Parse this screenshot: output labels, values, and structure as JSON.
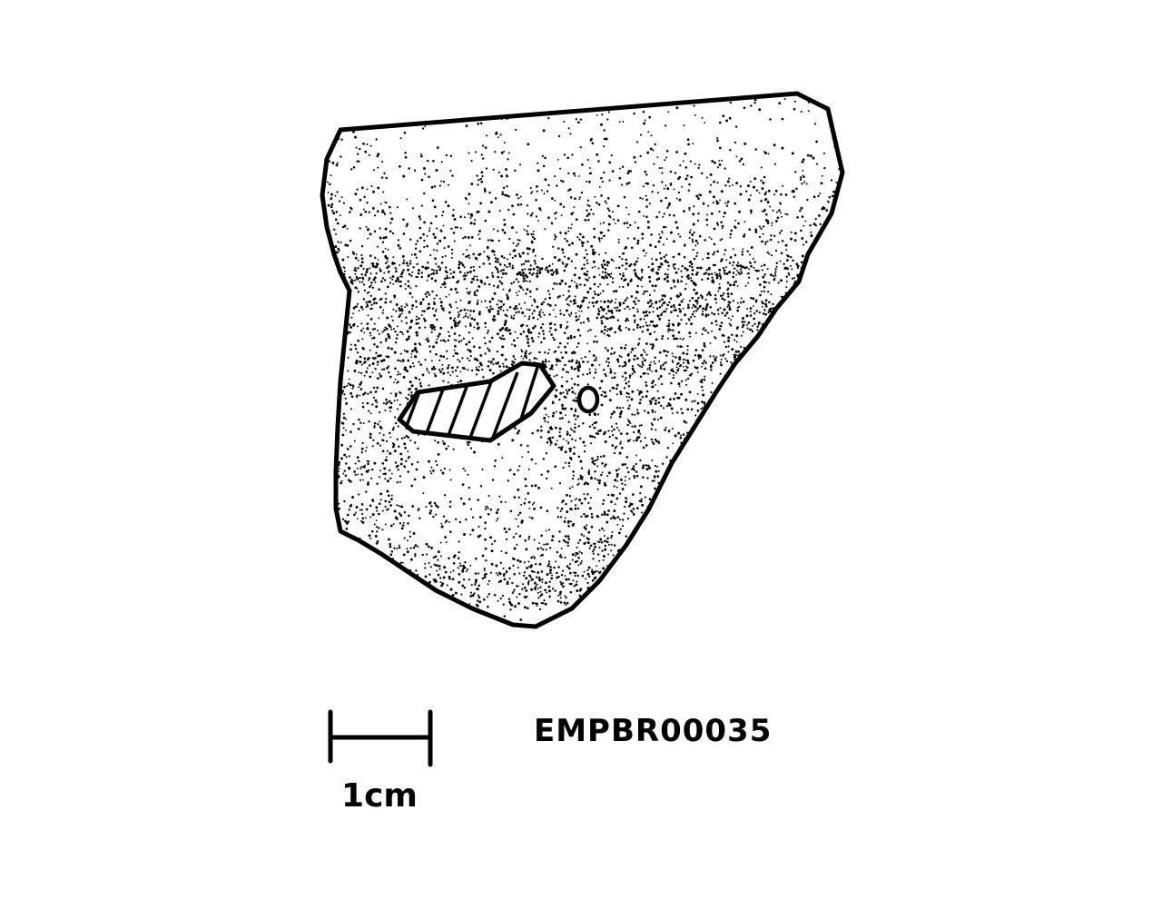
{
  "specimen_id": "EMPBR00035",
  "scale_bar": {
    "label": "1cm"
  },
  "colors": {
    "ink": "#000000",
    "paper": "#ffffff"
  }
}
